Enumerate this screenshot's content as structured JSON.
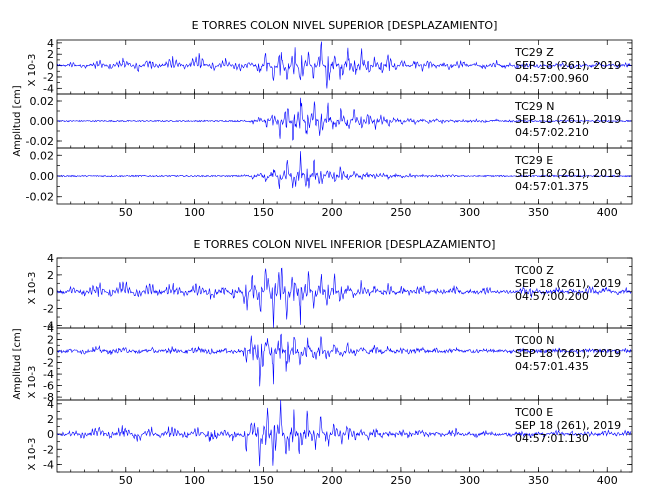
{
  "chart_data": [
    {
      "type": "line",
      "title": "E TORRES COLON NIVEL SUPERIOR [DESPLAZAMIENTO]",
      "ylabel": "Amplitud [cm]",
      "xlim": [
        0,
        418
      ],
      "xticks": [
        "50",
        "100",
        "150",
        "200",
        "250",
        "300",
        "350",
        "400"
      ],
      "trace_color": "#0000ff",
      "series": [
        {
          "name": "TC29 Z",
          "date": "SEP 18 (261), 2019",
          "time": "04:57:00.960",
          "multiplier": "X 10-3",
          "ylim": [
            -5,
            4.5
          ],
          "yticks": [
            "4",
            "2",
            "0",
            "-2",
            "-4"
          ],
          "values": [
            0.3,
            -0.2,
            0.5,
            0.1,
            -0.6,
            0.4,
            1.0,
            0.2,
            -0.8,
            0.6,
            1.2,
            0.0,
            -1.0,
            0.7,
            0.9,
            -0.3,
            0.4,
            1.4,
            0.6,
            -0.5,
            0.8,
            1.6,
            0.4,
            -0.9,
            0.3,
            1.1,
            -0.2,
            -1.2,
            0.5,
            0.2,
            -1.5,
            2.5,
            -3.0,
            3.5,
            -3.8,
            4.0,
            -4.3,
            3.2,
            -2.8,
            3.8,
            -4.0,
            2.7,
            -3.2,
            3.0,
            -2.2,
            2.6,
            -1.8,
            1.5,
            -1.6,
            1.8,
            -1.0,
            1.2,
            -0.5,
            0.9,
            -0.8,
            1.0,
            -0.3,
            0.6,
            -0.7,
            0.4,
            0.8,
            -0.2,
            0.5,
            -0.6,
            0.2,
            0.7,
            -0.4,
            0.3,
            -0.5,
            0.4,
            0.2,
            -0.3,
            0.1,
            -0.4,
            0.5,
            0.2,
            -0.6,
            0.1,
            0.3,
            -0.2,
            0.4,
            -0.1,
            0.2,
            -0.3,
            0.5,
            0.1
          ]
        },
        {
          "name": "TC29 N",
          "date": "SEP 18 (261), 2019",
          "time": "04:57:02.210",
          "multiplier": "",
          "ylim": [
            -0.027,
            0.027
          ],
          "yticks": [
            "0.02",
            "0.00",
            "-0.02"
          ],
          "values": [
            0.0,
            0.0,
            0.0,
            0.0,
            0.0,
            0.0,
            0.0,
            0.0,
            0.0,
            0.0,
            0.0,
            0.0,
            0.0,
            0.0,
            0.0,
            0.0,
            0.0,
            0.0,
            0.0,
            0.0,
            0.0,
            0.0,
            0.0,
            0.0,
            0.0,
            0.0,
            0.0,
            0.0,
            0.001,
            -0.002,
            0.004,
            -0.006,
            0.01,
            -0.015,
            0.018,
            -0.022,
            0.025,
            -0.02,
            0.022,
            -0.024,
            0.018,
            -0.015,
            0.016,
            -0.014,
            0.013,
            -0.012,
            0.011,
            -0.009,
            0.008,
            -0.006,
            0.005,
            -0.004,
            0.004,
            -0.003,
            0.003,
            -0.002,
            0.002,
            -0.002,
            0.001,
            -0.001,
            0.001,
            -0.001,
            0.001,
            -0.001,
            0.0,
            0.001,
            0.0,
            -0.001,
            0.0,
            0.0,
            0.0,
            0.0,
            0.0,
            0.0,
            0.0,
            0.0,
            0.0,
            0.0,
            0.0,
            0.0,
            0.0,
            0.0,
            0.0,
            0.0,
            0.0,
            0.0
          ]
        },
        {
          "name": "TC29 E",
          "date": "SEP 18 (261), 2019",
          "time": "04:57:01.375",
          "multiplier": "",
          "ylim": [
            -0.027,
            0.027
          ],
          "yticks": [
            "0.02",
            "0.00",
            "-0.02"
          ],
          "values": [
            0.0,
            0.0,
            0.0,
            0.0,
            0.0,
            0.0,
            0.0,
            0.0,
            0.0,
            0.0,
            0.0,
            0.0,
            0.0,
            0.0,
            0.0,
            0.0,
            0.0,
            0.0,
            0.0,
            0.0,
            0.0,
            0.0,
            0.0,
            0.0,
            0.0,
            0.0,
            0.0,
            0.0,
            0.001,
            -0.002,
            0.003,
            -0.005,
            0.008,
            -0.012,
            0.015,
            -0.018,
            0.02,
            -0.016,
            0.014,
            -0.012,
            0.01,
            -0.008,
            0.009,
            -0.007,
            0.006,
            -0.005,
            0.005,
            -0.004,
            0.003,
            -0.003,
            0.002,
            -0.002,
            0.002,
            -0.001,
            0.001,
            -0.001,
            0.001,
            -0.001,
            0.001,
            0.0,
            0.0,
            0.0,
            0.0,
            0.0,
            0.0,
            0.0,
            0.0,
            0.0,
            0.0,
            0.0,
            0.0,
            0.0,
            0.0,
            0.0,
            0.0,
            0.0,
            0.0,
            0.0,
            0.0,
            0.0,
            0.0,
            0.0,
            0.0,
            0.0,
            0.0,
            0.0
          ]
        }
      ]
    },
    {
      "type": "line",
      "title": "E TORRES COLON NIVEL INFERIOR [DESPLAZAMIENTO]",
      "ylabel": "Amplitud [cm]",
      "xlim": [
        0,
        418
      ],
      "xticks": [
        "50",
        "100",
        "150",
        "200",
        "250",
        "300",
        "350",
        "400"
      ],
      "trace_color": "#0000ff",
      "series": [
        {
          "name": "TC00 Z",
          "date": "SEP 18 (261), 2019",
          "time": "04:57:00.200",
          "multiplier": "X 10-3",
          "ylim": [
            -4.3,
            4.0
          ],
          "yticks": [
            "4",
            "2",
            "0",
            "-2",
            "-4"
          ],
          "values": [
            0.1,
            -0.3,
            0.4,
            0.2,
            -0.6,
            0.5,
            1.0,
            0.3,
            -0.7,
            0.6,
            1.1,
            0.0,
            -0.9,
            0.4,
            0.8,
            -0.4,
            0.3,
            1.0,
            0.4,
            -0.6,
            0.5,
            0.9,
            -0.2,
            -1.1,
            0.2,
            0.6,
            -0.9,
            0.6,
            -2.0,
            2.8,
            -3.2,
            3.5,
            -3.7,
            3.8,
            -3.3,
            2.9,
            -3.4,
            3.1,
            -2.6,
            2.4,
            -2.0,
            1.8,
            -1.6,
            1.4,
            -1.0,
            1.2,
            -0.7,
            0.9,
            -0.6,
            0.8,
            -0.3,
            0.6,
            -0.5,
            0.4,
            0.7,
            -0.2,
            0.5,
            -0.4,
            0.3,
            0.6,
            -0.3,
            0.2,
            -0.5,
            0.4,
            0.3,
            -0.2,
            0.1,
            -0.4,
            0.2,
            0.5,
            -0.6,
            0.3,
            -0.4,
            0.2,
            0.6,
            -0.1,
            0.4,
            -0.3,
            0.2,
            0.5,
            -0.2,
            0.6,
            0.1,
            -0.3,
            0.4,
            0.2
          ]
        },
        {
          "name": "TC00 N",
          "date": "SEP 18 (261), 2019",
          "time": "04:57:01.435",
          "multiplier": "X 10-3",
          "ylim": [
            -8.5,
            4.0
          ],
          "yticks": [
            "4",
            "2",
            "0",
            "-2",
            "-4",
            "-6",
            "-8"
          ],
          "values": [
            0.1,
            -0.2,
            0.3,
            0.1,
            -0.4,
            0.3,
            0.6,
            0.1,
            -0.5,
            0.3,
            0.5,
            0.0,
            -0.6,
            0.2,
            0.4,
            -0.3,
            0.2,
            0.6,
            0.1,
            -0.4,
            0.3,
            0.5,
            -0.2,
            -0.5,
            0.1,
            0.3,
            -0.4,
            0.2,
            -1.5,
            4.0,
            -7.0,
            3.5,
            -4.5,
            3.8,
            -3.6,
            2.8,
            -3.0,
            2.6,
            -2.2,
            2.0,
            -1.6,
            1.5,
            -1.2,
            1.1,
            -0.9,
            1.0,
            -0.6,
            0.9,
            -0.5,
            0.8,
            -0.3,
            0.6,
            -0.4,
            0.4,
            0.5,
            -0.2,
            0.4,
            -0.3,
            0.2,
            0.4,
            -0.2,
            0.1,
            -0.3,
            0.2,
            0.3,
            -0.2,
            0.1,
            -0.2,
            0.1,
            0.3,
            -0.3,
            0.2,
            -0.2,
            0.1,
            0.3,
            -0.1,
            0.2,
            -0.2,
            0.1,
            0.3,
            -0.1,
            0.2,
            0.1,
            -0.2,
            0.2,
            0.1
          ]
        },
        {
          "name": "TC00 E",
          "date": "SEP 18 (261), 2019",
          "time": "04:57:01.130",
          "multiplier": "X 10-3",
          "ylim": [
            -5,
            4.5
          ],
          "yticks": [
            "4",
            "2",
            "0",
            "-2",
            "-4"
          ],
          "values": [
            0.2,
            -0.3,
            0.5,
            0.2,
            -0.7,
            0.4,
            0.9,
            0.2,
            -0.8,
            0.5,
            1.0,
            -0.1,
            -1.0,
            0.3,
            0.7,
            -0.5,
            0.3,
            1.0,
            0.3,
            -0.7,
            0.4,
            0.8,
            -0.3,
            -1.2,
            0.1,
            0.5,
            -1.0,
            0.5,
            -1.8,
            2.6,
            -3.5,
            3.8,
            -4.2,
            3.9,
            -3.6,
            3.1,
            -3.3,
            2.9,
            -2.5,
            2.3,
            -1.9,
            1.7,
            -1.5,
            1.3,
            -1.0,
            1.1,
            -0.7,
            0.9,
            -0.6,
            0.8,
            -0.4,
            0.6,
            -0.5,
            0.4,
            0.6,
            -0.3,
            0.5,
            -0.4,
            0.3,
            0.5,
            -0.3,
            0.2,
            -0.4,
            0.3,
            0.3,
            -0.2,
            0.1,
            -0.3,
            0.2,
            0.4,
            -0.5,
            0.3,
            -0.3,
            0.2,
            0.5,
            -0.1,
            0.3,
            -0.2,
            0.2,
            0.4,
            -0.2,
            0.5,
            0.1,
            -0.2,
            0.3,
            0.2
          ]
        }
      ]
    }
  ]
}
